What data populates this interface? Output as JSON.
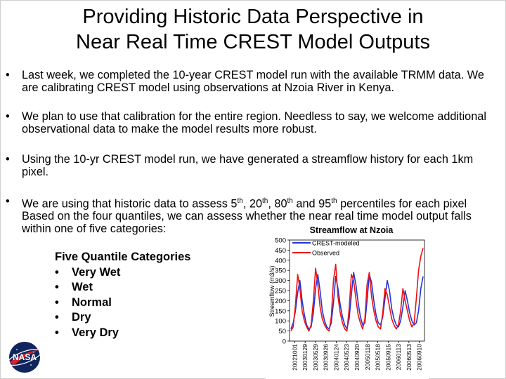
{
  "title": {
    "line1": "Providing Historic Data Perspective in",
    "line2": "Near Real Time CREST Model Outputs"
  },
  "bullets": [
    {
      "dot": "•",
      "text": "Last week, we completed the 10-year CREST model run with the available TRMM data. We are calibrating CREST model using observations at Nzoia River in Kenya."
    },
    {
      "dot": "•",
      "text": "We plan to use that calibration for the entire region.  Needless to say, we welcome additional observational data to make the model results more robust."
    },
    {
      "dot": "•",
      "text": "Using the 10-yr CREST model run, we have generated a streamflow history for each 1km pixel."
    }
  ],
  "bullet4": {
    "dot": "•",
    "p1": "We are using that historic data to assess 5",
    "s1": "th",
    "p2": ", 20",
    "s2": "th",
    "p3": ", 80",
    "s3": "th",
    "p4": " and 95",
    "s4": "th",
    "p5": " percentiles for each pixel  Based on the four quantiles, we can assess whether the near real time model output falls within one of five categories:"
  },
  "quantiles": {
    "heading": "Five Quantile Categories",
    "bullet": "•",
    "items": [
      "Very Wet",
      "Wet",
      "Normal",
      "Dry",
      "Very Dry"
    ]
  },
  "logo": {
    "text": "NASA",
    "icon": "nasa-meatball-logo"
  },
  "chart_data": {
    "type": "line",
    "title": "Streamflow at Nzoia",
    "ylabel": "Streamflow (m3/s)",
    "ylim": [
      0,
      500
    ],
    "yticks": [
      0,
      50,
      100,
      150,
      200,
      250,
      300,
      350,
      400,
      450,
      500
    ],
    "xticks": [
      "20021001",
      "20030129",
      "20030529",
      "20030926",
      "20040124",
      "20040523",
      "20040920",
      "20050118",
      "20050518",
      "20050915",
      "20060113",
      "20060513",
      "20060910"
    ],
    "legend_position": "top-left",
    "series": [
      {
        "name": "CREST-modeled",
        "color": "#2233dd",
        "values": [
          60,
          90,
          150,
          240,
          300,
          200,
          130,
          80,
          60,
          70,
          140,
          260,
          330,
          250,
          150,
          100,
          70,
          60,
          90,
          190,
          320,
          260,
          180,
          120,
          80,
          60,
          110,
          230,
          340,
          280,
          190,
          120,
          80,
          90,
          200,
          330,
          290,
          200,
          130,
          90,
          80,
          120,
          210,
          300,
          250,
          160,
          110,
          80,
          70,
          100,
          170,
          250,
          200,
          140,
          100,
          80,
          90,
          150,
          260,
          320
        ]
      },
      {
        "name": "Observed",
        "color": "#ee1111",
        "values": [
          50,
          70,
          180,
          330,
          260,
          150,
          100,
          70,
          50,
          80,
          200,
          360,
          280,
          170,
          110,
          80,
          60,
          50,
          120,
          300,
          380,
          220,
          140,
          90,
          60,
          50,
          160,
          330,
          300,
          210,
          130,
          90,
          60,
          110,
          280,
          340,
          220,
          150,
          100,
          70,
          60,
          140,
          260,
          230,
          170,
          110,
          80,
          60,
          80,
          150,
          260,
          200,
          150,
          100,
          70,
          90,
          210,
          350,
          420,
          460
        ]
      }
    ]
  }
}
